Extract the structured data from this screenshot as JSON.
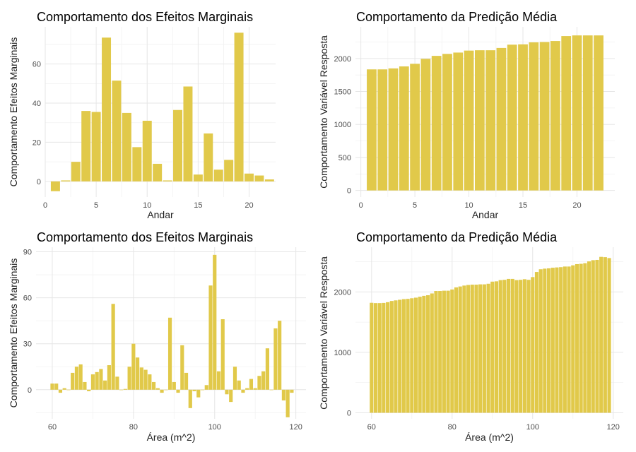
{
  "colors": {
    "bar": "#E1C94A",
    "grid_major": "#e6e6e6",
    "grid_minor": "#f2f2f2",
    "tick_text": "#4d4d4d"
  },
  "chart_data": [
    {
      "type": "bar",
      "title": "Comportamento dos Efeitos Marginais",
      "xlabel": "Andar",
      "ylabel": "Comportamento Efeitos Marginais",
      "grid": true,
      "xlim": [
        0,
        22.6
      ],
      "ylim": [
        -8,
        79
      ],
      "xticks": [
        0,
        5,
        10,
        15,
        20
      ],
      "yticks": [
        0,
        20,
        40,
        60
      ],
      "x": [
        1,
        2,
        3,
        4,
        5,
        6,
        7,
        8,
        9,
        10,
        11,
        12,
        13,
        14,
        15,
        16,
        17,
        18,
        19,
        20,
        21,
        22
      ],
      "values": [
        -5,
        0.5,
        10,
        36,
        35.5,
        73.5,
        51.5,
        35,
        17.5,
        31,
        9,
        0.5,
        36.5,
        48.5,
        3.5,
        24.5,
        6,
        11,
        76,
        4,
        3,
        1
      ]
    },
    {
      "type": "bar",
      "title": "Comportamento da Predição Média",
      "xlabel": "Andar",
      "ylabel": "Comportamento Variável Resposta",
      "grid": true,
      "xlim": [
        -0.5,
        23.5
      ],
      "ylim": [
        -100,
        2480
      ],
      "xticks": [
        0,
        5,
        10,
        15,
        20
      ],
      "yticks": [
        0,
        500,
        1000,
        1500,
        2000
      ],
      "x": [
        1,
        2,
        3,
        4,
        5,
        6,
        7,
        8,
        9,
        10,
        11,
        12,
        13,
        14,
        15,
        16,
        17,
        18,
        19,
        20,
        21,
        22
      ],
      "values": [
        1835,
        1835,
        1850,
        1880,
        1920,
        1995,
        2040,
        2070,
        2090,
        2120,
        2125,
        2125,
        2160,
        2210,
        2215,
        2245,
        2250,
        2265,
        2340,
        2350,
        2350,
        2350
      ]
    },
    {
      "type": "bar",
      "title": "Comportamento dos Efeitos Marginais",
      "xlabel": "Área (m^2)",
      "ylabel": "Comportamento Efeitos Marginais",
      "grid": true,
      "xlim": [
        56,
        122.5
      ],
      "ylim": [
        -19,
        93
      ],
      "xticks": [
        60,
        80,
        100,
        120
      ],
      "yticks": [
        0,
        30,
        60,
        90
      ],
      "x": [
        60,
        61,
        62,
        63,
        64,
        65,
        66,
        67,
        68,
        69,
        70,
        71,
        72,
        73,
        74,
        75,
        76,
        77,
        78,
        79,
        80,
        81,
        82,
        83,
        84,
        85,
        86,
        87,
        88,
        89,
        90,
        91,
        92,
        93,
        94,
        95,
        96,
        97,
        98,
        99,
        100,
        101,
        102,
        103,
        104,
        105,
        106,
        107,
        108,
        109,
        110,
        111,
        112,
        113,
        114,
        115,
        116,
        117,
        118,
        119
      ],
      "values": [
        4,
        4,
        -2,
        1,
        0,
        11,
        15,
        16.5,
        5,
        -1,
        10,
        11.5,
        13.5,
        6,
        16,
        56,
        8.5,
        0,
        0.5,
        15,
        30,
        21,
        14.5,
        13,
        10,
        5,
        1,
        -2,
        0,
        47,
        5,
        -2,
        29,
        11,
        -12,
        -1,
        -5,
        0,
        3,
        68,
        88,
        12,
        46,
        -3,
        -8,
        15,
        6,
        -2,
        1,
        7,
        1,
        9,
        12,
        27,
        0,
        40,
        45,
        -7,
        -18,
        -2
      ]
    },
    {
      "type": "bar",
      "title": "Comportamento da Predição Média",
      "xlabel": "Área (m^2)",
      "ylabel": "Comportamento Variável Resposta",
      "grid": true,
      "xlim": [
        56,
        122.5
      ],
      "ylim": [
        -100,
        2740
      ],
      "xticks": [
        60,
        80,
        100,
        120
      ],
      "yticks": [
        0,
        1000,
        2000
      ],
      "x": [
        60,
        61,
        62,
        63,
        64,
        65,
        66,
        67,
        68,
        69,
        70,
        71,
        72,
        73,
        74,
        75,
        76,
        77,
        78,
        79,
        80,
        81,
        82,
        83,
        84,
        85,
        86,
        87,
        88,
        89,
        90,
        91,
        92,
        93,
        94,
        95,
        96,
        97,
        98,
        99,
        100,
        101,
        102,
        103,
        104,
        105,
        106,
        107,
        108,
        109,
        110,
        111,
        112,
        113,
        114,
        115,
        116,
        117,
        118,
        119
      ],
      "values": [
        1820,
        1815,
        1815,
        1818,
        1830,
        1850,
        1860,
        1870,
        1880,
        1885,
        1895,
        1905,
        1920,
        1935,
        1945,
        1975,
        2015,
        2015,
        2020,
        2020,
        2040,
        2075,
        2090,
        2105,
        2115,
        2120,
        2120,
        2125,
        2125,
        2135,
        2170,
        2175,
        2195,
        2200,
        2215,
        2215,
        2195,
        2200,
        2210,
        2200,
        2245,
        2330,
        2375,
        2385,
        2390,
        2400,
        2405,
        2410,
        2420,
        2420,
        2440,
        2460,
        2465,
        2475,
        2505,
        2525,
        2530,
        2580,
        2575,
        2560
      ]
    }
  ]
}
